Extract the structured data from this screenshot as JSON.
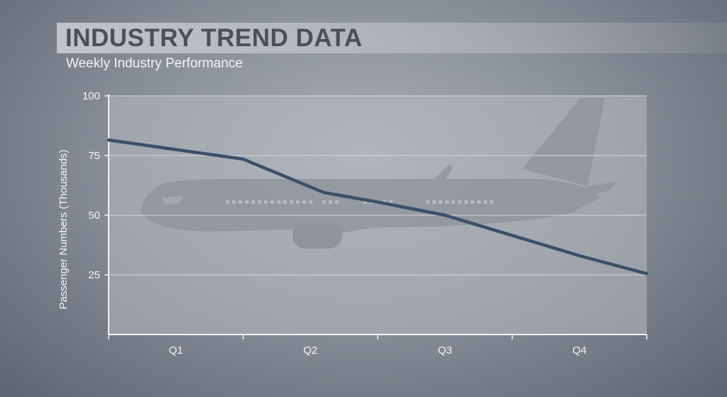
{
  "header": {
    "title": "INDUSTRY TREND DATA",
    "subtitle": "Weekly Industry Performance"
  },
  "colors": {
    "line": "#3b5068",
    "plot_background": "#b6bac0",
    "gridline": "#d4d7dc",
    "axis": "#f2f3f5",
    "airplane": "#8e939b"
  },
  "background_image": "airplane-silhouette",
  "chart_data": {
    "type": "line",
    "title": "INDUSTRY TREND DATA",
    "subtitle": "Weekly Industry Performance",
    "xlabel": "",
    "ylabel": "Passenger Numbers (Thousands)",
    "categories": [
      "Q1",
      "Q2",
      "Q3",
      "Q4"
    ],
    "x_range": [
      0,
      4
    ],
    "ylim": [
      0,
      100
    ],
    "yticks": [
      25,
      50,
      75,
      100
    ],
    "grid": true,
    "legend": "none",
    "series": [
      {
        "x": [
          0,
          0.5,
          1.0,
          1.6,
          2.0,
          2.5,
          3.0,
          3.5,
          4.0
        ],
        "values": [
          81.5,
          77.5,
          73.5,
          59.5,
          55.5,
          50,
          41.5,
          33,
          25.5
        ]
      }
    ]
  }
}
